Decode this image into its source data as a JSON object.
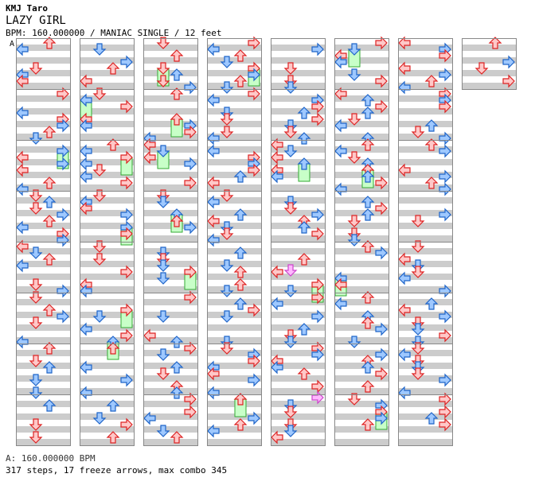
{
  "header": {
    "artist": "KMJ Taro",
    "title": "LAZY GIRL",
    "info": "BPM: 160.000000 / MANIAC SINGLE / 12 feet"
  },
  "marker": {
    "label": "A"
  },
  "footer": {
    "bpm": "A: 160.000000 BPM",
    "stats": "317 steps, 17 freeze arrows, max combo 345"
  },
  "colors": {
    "band": "#cccccc",
    "red_fill": "#ffc8c8",
    "red_stroke": "#dd2222",
    "blue_fill": "#9ec8ff",
    "blue_stroke": "#1e64c8",
    "freeze_fill": "#c8ffc8",
    "freeze_stroke": "#33aa33",
    "shock_fill": "#ffb8ff",
    "shock_stroke": "#cc44cc"
  },
  "chart_data": {
    "type": "table",
    "columns": 8,
    "measures_per_column": [
      8,
      8,
      8,
      8,
      8,
      8,
      8,
      1
    ],
    "lanes": [
      "left",
      "down",
      "up",
      "right"
    ],
    "total_steps": 317,
    "freeze_arrows": 17,
    "max_combo": 345
  }
}
